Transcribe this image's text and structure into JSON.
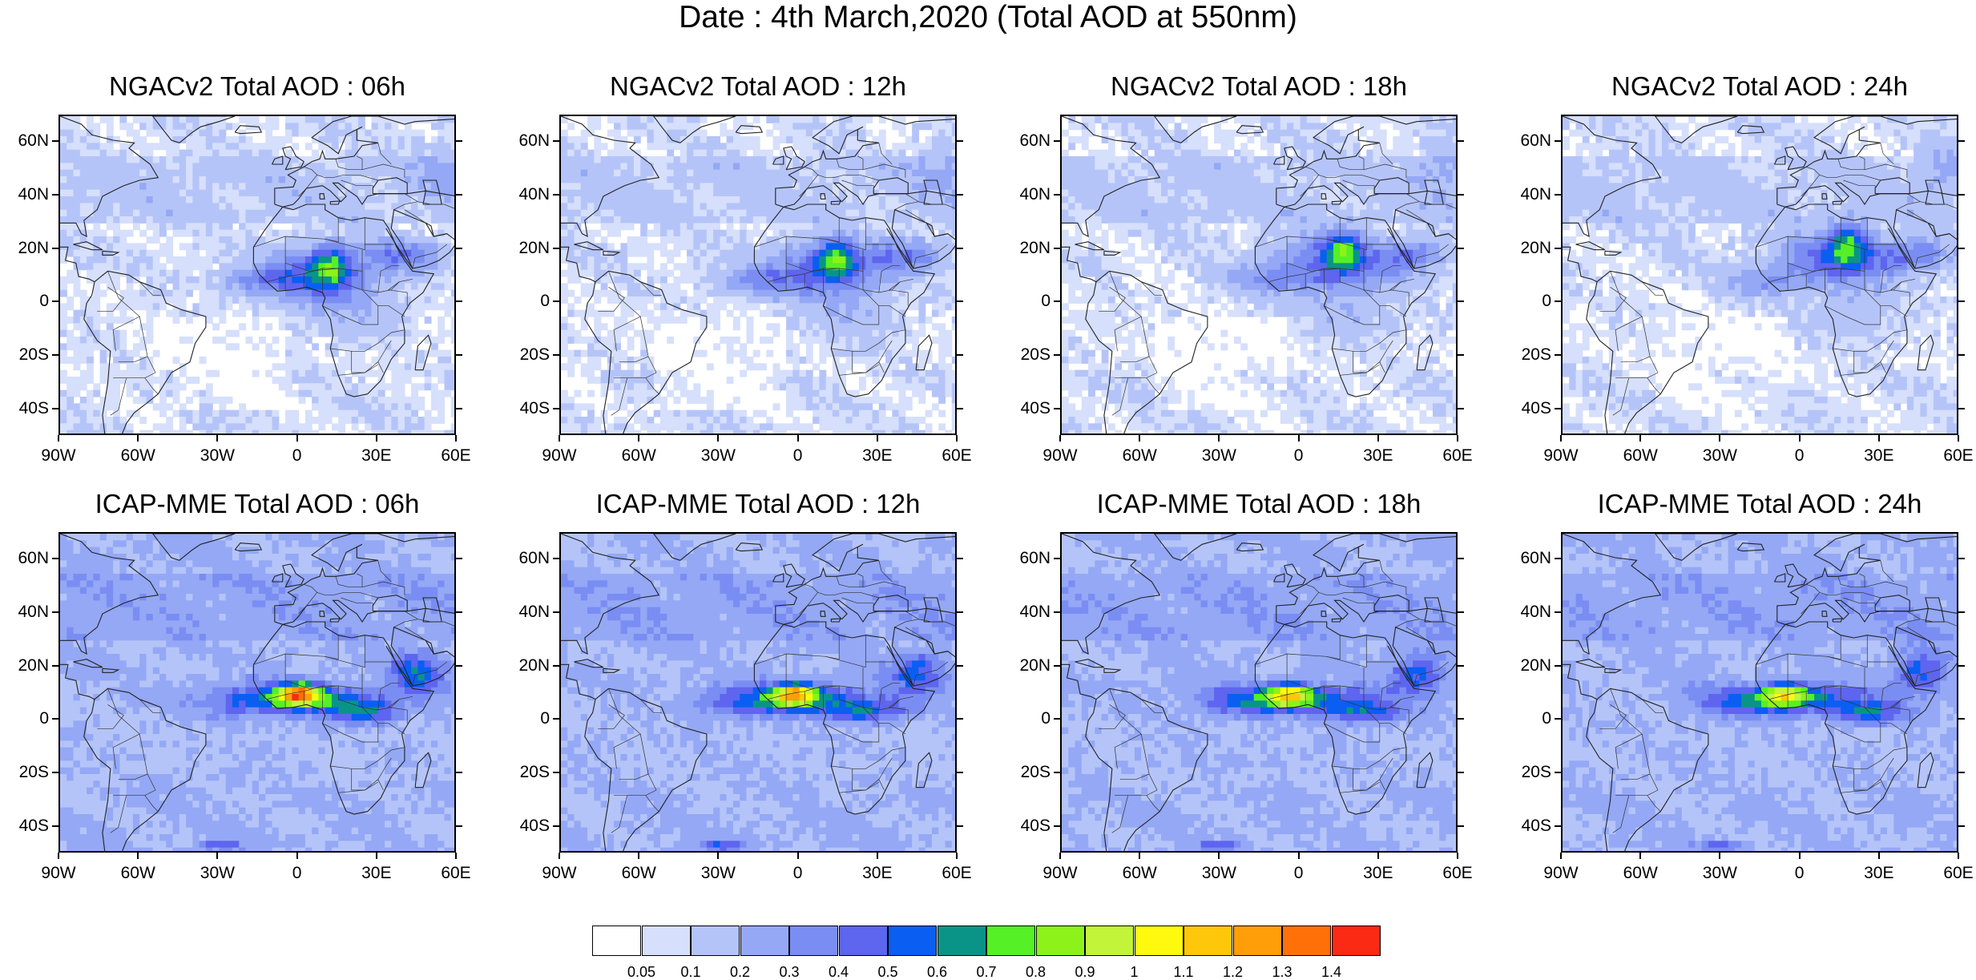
{
  "title": "Date : 4th March,2020 (Total AOD at 550nm)",
  "panels": [
    {
      "row": 0,
      "col": 0,
      "title": "NGACv2 Total AOD : 06h",
      "model": "NGACv2"
    },
    {
      "row": 0,
      "col": 1,
      "title": "NGACv2 Total AOD : 12h",
      "model": "NGACv2"
    },
    {
      "row": 0,
      "col": 2,
      "title": "NGACv2 Total AOD : 18h",
      "model": "NGACv2"
    },
    {
      "row": 0,
      "col": 3,
      "title": "NGACv2 Total AOD : 24h",
      "model": "NGACv2"
    },
    {
      "row": 1,
      "col": 0,
      "title": "ICAP-MME Total AOD : 06h",
      "model": "ICAP-MME"
    },
    {
      "row": 1,
      "col": 1,
      "title": "ICAP-MME Total AOD : 12h",
      "model": "ICAP-MME"
    },
    {
      "row": 1,
      "col": 2,
      "title": "ICAP-MME Total AOD : 18h",
      "model": "ICAP-MME"
    },
    {
      "row": 1,
      "col": 3,
      "title": "ICAP-MME Total AOD : 24h",
      "model": "ICAP-MME"
    }
  ],
  "axes": {
    "lon_labels": [
      "90W",
      "60W",
      "30W",
      "0",
      "30E",
      "60E"
    ],
    "lat_labels": [
      "60N",
      "40N",
      "20N",
      "0",
      "20S",
      "40S"
    ],
    "lon_range": [
      -90,
      60
    ],
    "lat_range": [
      -50,
      70
    ],
    "lon_ticks": [
      -90,
      -60,
      -30,
      0,
      30,
      60
    ],
    "lat_ticks": [
      60,
      40,
      20,
      0,
      -20,
      -40
    ]
  },
  "colorbar": {
    "labels": [
      "0.05",
      "0.1",
      "0.2",
      "0.3",
      "0.4",
      "0.5",
      "0.6",
      "0.7",
      "0.8",
      "0.9",
      "1",
      "1.1",
      "1.2",
      "1.3",
      "1.4"
    ],
    "colors": [
      "#ffffff",
      "#d6dffb",
      "#b5c4f8",
      "#94a8f5",
      "#7a8df3",
      "#5e65ee",
      "#0a5ef2",
      "#0a9488",
      "#55f025",
      "#8df21a",
      "#c2f43a",
      "#fffa0d",
      "#ffc70a",
      "#ff9e09",
      "#ff7008",
      "#fb2a14"
    ]
  }
}
